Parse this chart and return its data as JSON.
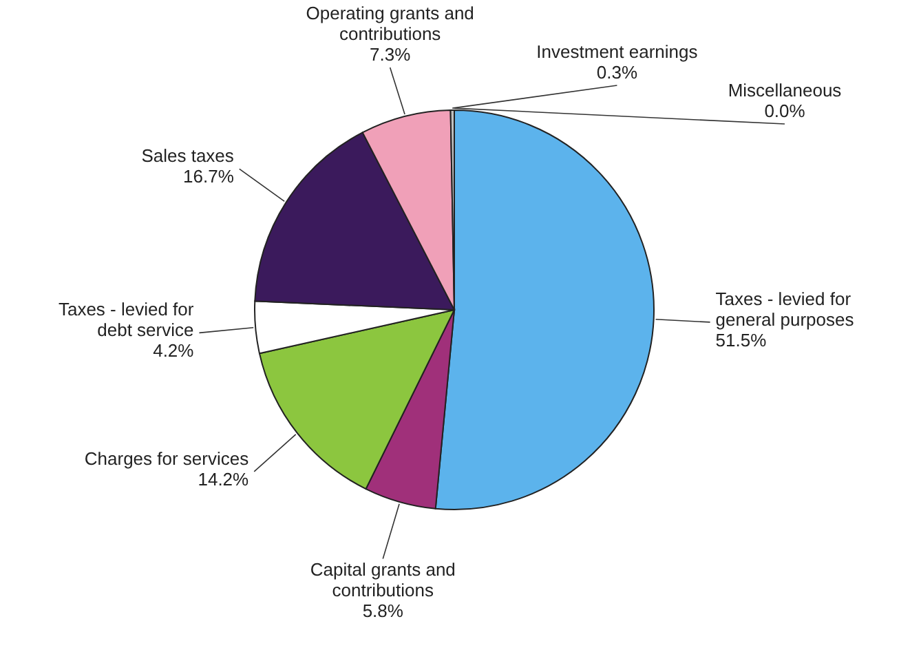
{
  "chart_data": {
    "type": "pie",
    "categories": [
      "Taxes - levied for general purposes",
      "Capital grants and contributions",
      "Charges for services",
      "Taxes - levied for debt service",
      "Sales taxes",
      "Operating grants and contributions",
      "Investment earnings",
      "Miscellaneous"
    ],
    "values": [
      51.5,
      5.8,
      14.2,
      4.2,
      16.7,
      7.3,
      0.3,
      0.0
    ],
    "value_labels": [
      "51.5%",
      "5.8%",
      "14.2%",
      "4.2%",
      "16.7%",
      "7.3%",
      "0.3%",
      "0.0%"
    ],
    "colors": [
      "#5cb3ec",
      "#a0307a",
      "#8cc63f",
      "#ffffff",
      "#3b1a5c",
      "#f0a0b8",
      "#c0c0c0",
      "#808080"
    ]
  }
}
